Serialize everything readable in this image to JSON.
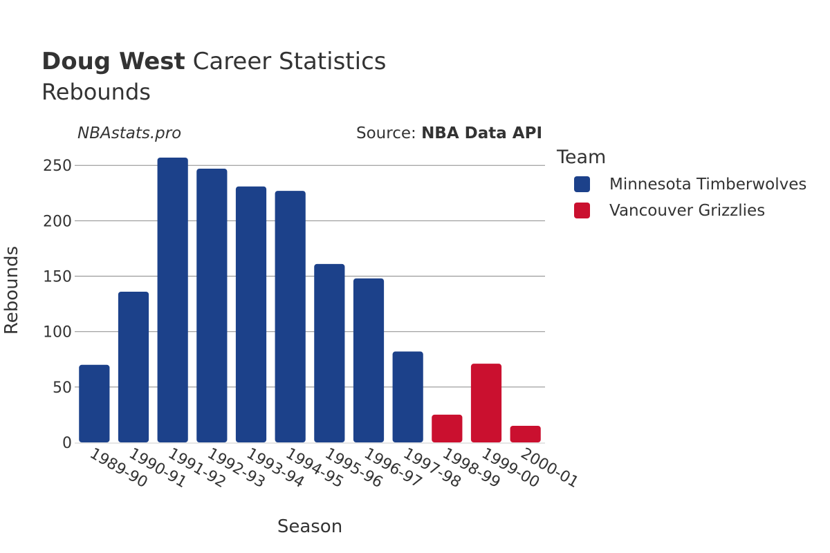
{
  "header": {
    "title_bold": "Doug West",
    "title_rest": " Career Statistics",
    "subtitle": "Rebounds",
    "watermark": "NBAstats.pro",
    "source_prefix": "Source: ",
    "source_name": "NBA Data API"
  },
  "legend": {
    "title": "Team",
    "items": [
      {
        "label": "Minnesota Timberwolves",
        "color": "#1c418a"
      },
      {
        "label": "Vancouver Grizzlies",
        "color": "#ca102f"
      }
    ]
  },
  "chart_data": {
    "type": "bar",
    "title": "Doug West Career Statistics",
    "subtitle": "Rebounds",
    "xlabel": "Season",
    "ylabel": "Rebounds",
    "ylim": [
      0,
      262
    ],
    "yticks": [
      0,
      50,
      100,
      150,
      200,
      250
    ],
    "grid": true,
    "legend_position": "right",
    "categories": [
      "1989-90",
      "1990-91",
      "1991-92",
      "1992-93",
      "1993-94",
      "1994-95",
      "1995-96",
      "1996-97",
      "1997-98",
      "1998-99",
      "1999-00",
      "2000-01"
    ],
    "values": [
      70,
      136,
      257,
      247,
      231,
      227,
      161,
      148,
      82,
      25,
      71,
      15
    ],
    "teams": [
      "Minnesota Timberwolves",
      "Minnesota Timberwolves",
      "Minnesota Timberwolves",
      "Minnesota Timberwolves",
      "Minnesota Timberwolves",
      "Minnesota Timberwolves",
      "Minnesota Timberwolves",
      "Minnesota Timberwolves",
      "Minnesota Timberwolves",
      "Vancouver Grizzlies",
      "Vancouver Grizzlies",
      "Vancouver Grizzlies"
    ]
  }
}
